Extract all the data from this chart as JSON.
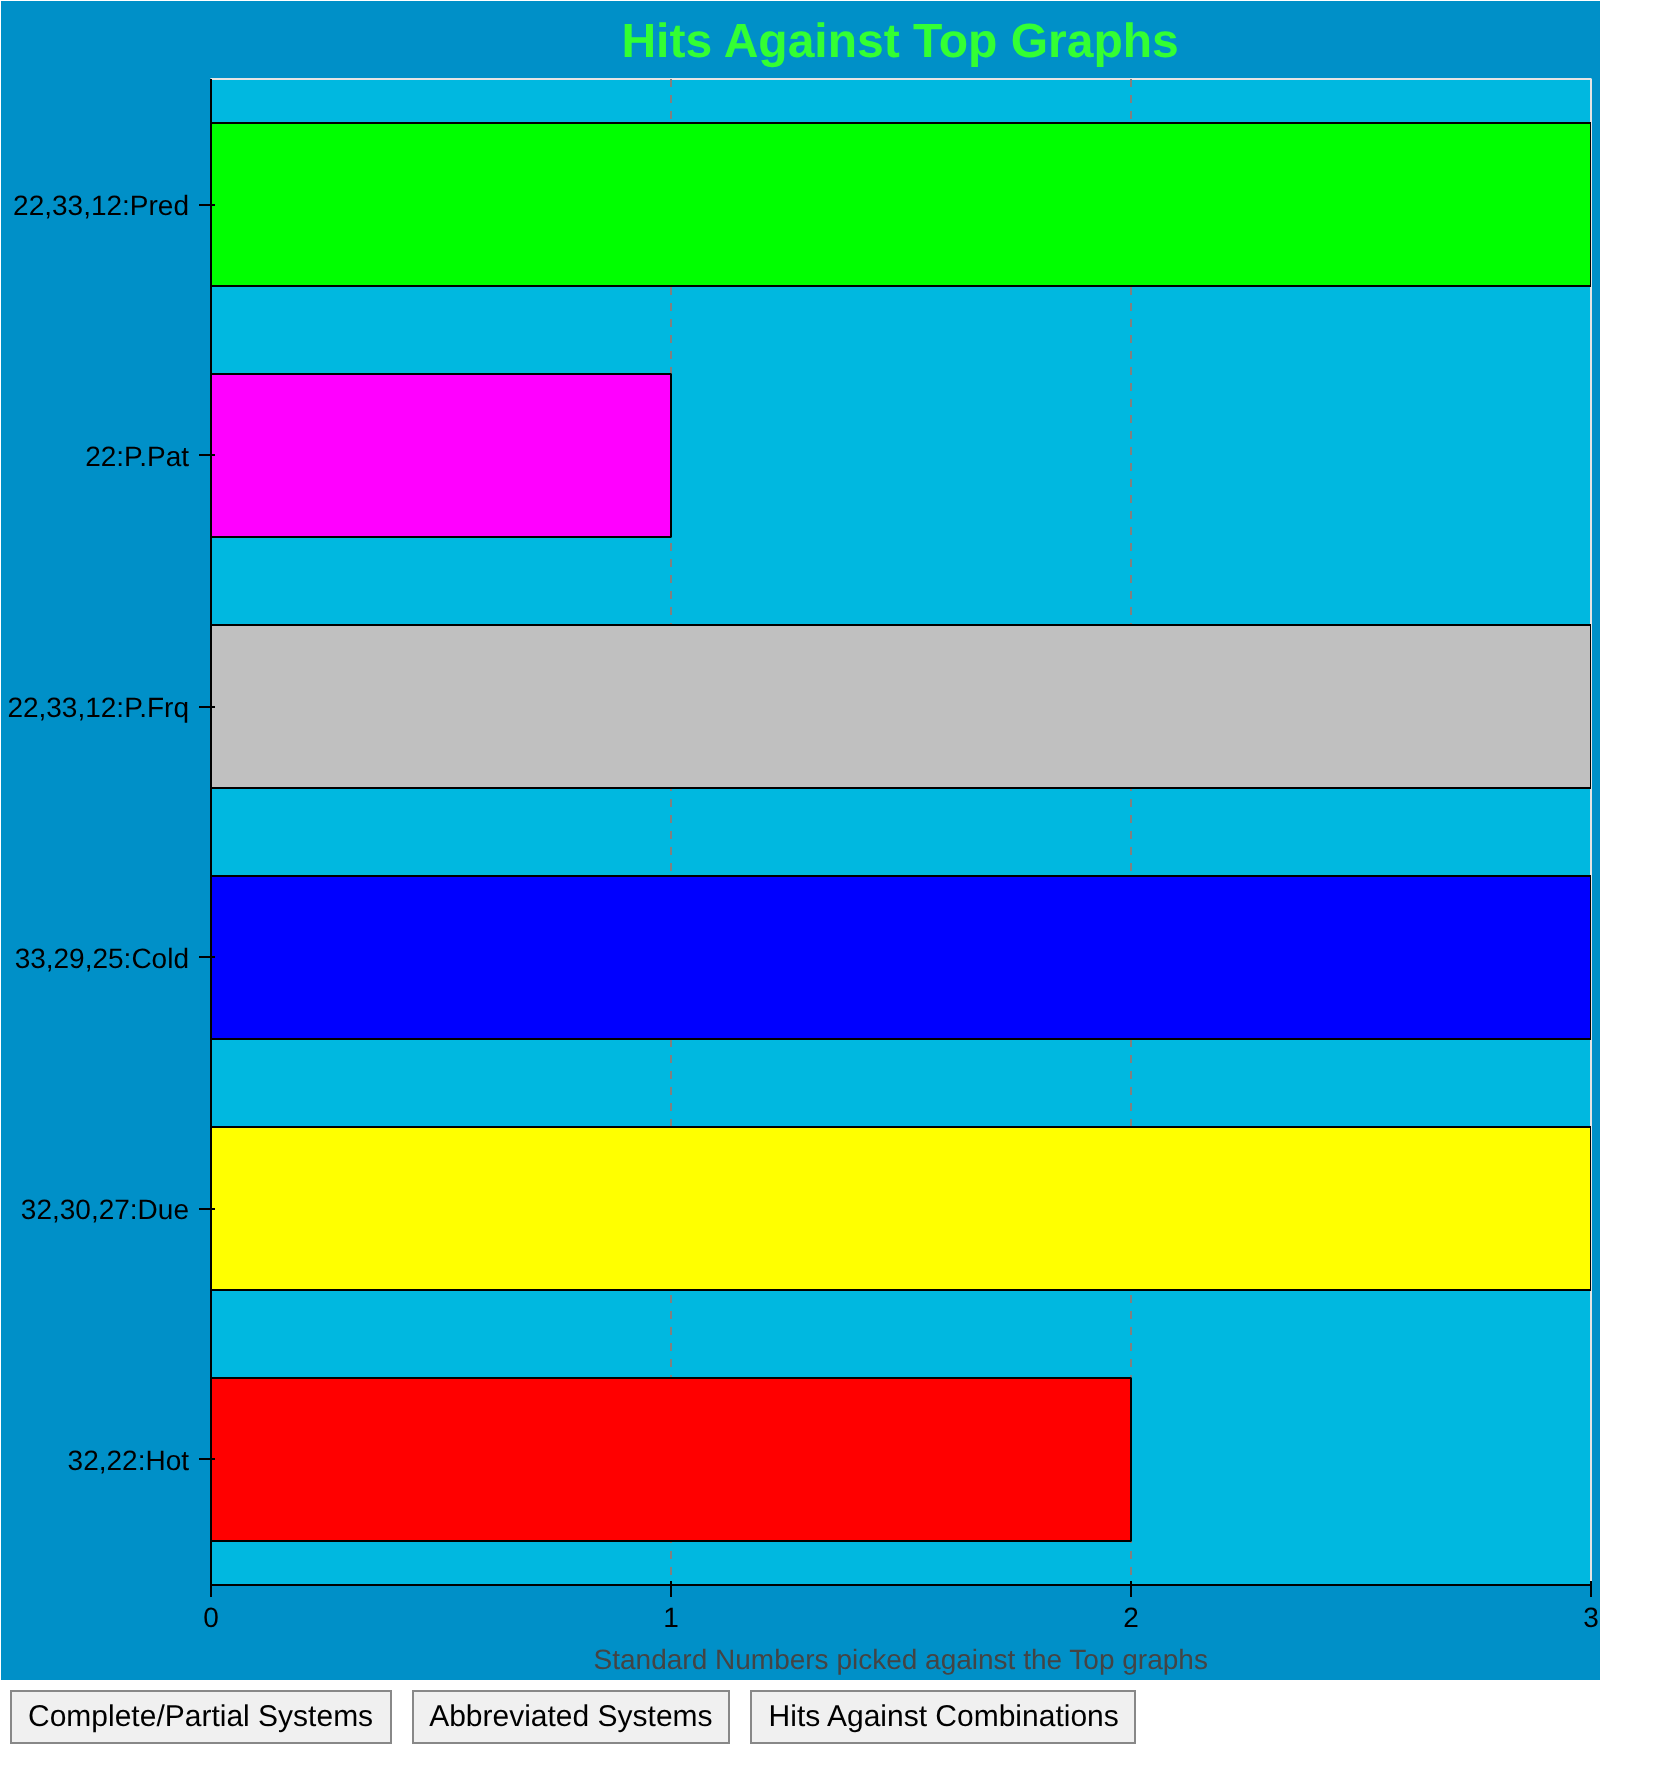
{
  "chart_data": {
    "type": "bar",
    "orientation": "horizontal",
    "title": "Hits Against Top Graphs",
    "xlabel": "Standard Numbers picked against the Top graphs",
    "categories": [
      "22,33,12:Pred",
      "22:P.Pat",
      "22,33,12:P.Frq",
      "33,29,25:Cold",
      "32,30,27:Due",
      "32,22:Hot"
    ],
    "values": [
      3,
      1,
      3,
      3,
      3,
      2
    ],
    "colors": [
      "#00ff00",
      "#ff00ff",
      "#c0c0c0",
      "#0000ff",
      "#ffff00",
      "#ff0000"
    ],
    "xlim": [
      0,
      3
    ],
    "xticks": [
      0,
      1,
      2,
      3
    ],
    "grid": "x",
    "annotations": [
      "Complete/Partial Systems",
      "Abbreviated Systems",
      "Hits Against Combinations"
    ]
  }
}
